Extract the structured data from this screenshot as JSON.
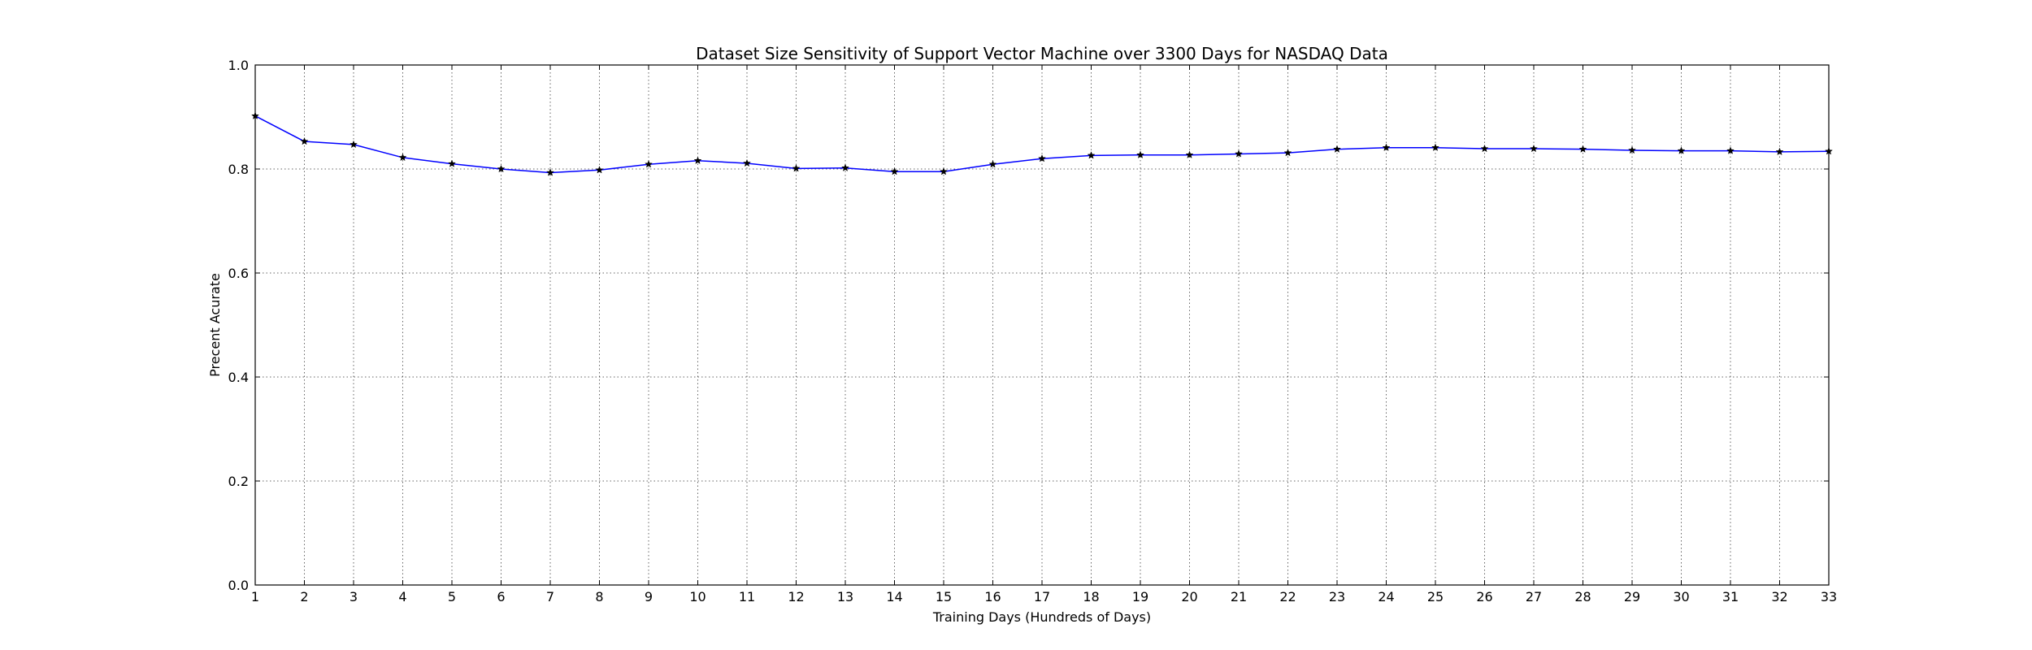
{
  "chart_data": {
    "type": "line",
    "title": "Dataset Size Sensitivity of Support Vector Machine over 3300 Days for NASDAQ Data",
    "xlabel": "Training Days (Hundreds of Days)",
    "ylabel": "Precent Acurate",
    "xlim": [
      1,
      33
    ],
    "ylim": [
      0.0,
      1.0
    ],
    "grid": true,
    "xticks": [
      1,
      2,
      3,
      4,
      5,
      6,
      7,
      8,
      9,
      10,
      11,
      12,
      13,
      14,
      15,
      16,
      17,
      18,
      19,
      20,
      21,
      22,
      23,
      24,
      25,
      26,
      27,
      28,
      29,
      30,
      31,
      32,
      33
    ],
    "yticks": [
      "0.0",
      "0.2",
      "0.4",
      "0.6",
      "0.8",
      "1.0"
    ],
    "series": [
      {
        "color": "#0000ff",
        "marker": "star",
        "x": [
          1,
          2,
          3,
          4,
          5,
          6,
          7,
          8,
          9,
          10,
          11,
          12,
          13,
          14,
          15,
          16,
          17,
          18,
          19,
          20,
          21,
          22,
          23,
          24,
          25,
          26,
          27,
          28,
          29,
          30,
          31,
          32,
          33
        ],
        "values": [
          0.902,
          0.853,
          0.847,
          0.822,
          0.81,
          0.8,
          0.793,
          0.798,
          0.809,
          0.816,
          0.811,
          0.801,
          0.802,
          0.795,
          0.795,
          0.809,
          0.82,
          0.826,
          0.827,
          0.827,
          0.829,
          0.831,
          0.838,
          0.841,
          0.841,
          0.839,
          0.839,
          0.838,
          0.836,
          0.835,
          0.835,
          0.833,
          0.834
        ]
      }
    ]
  }
}
